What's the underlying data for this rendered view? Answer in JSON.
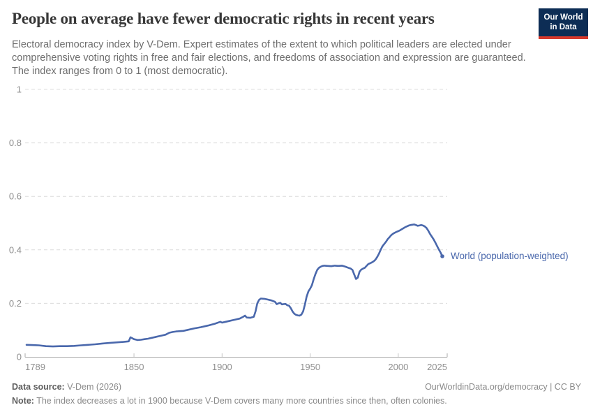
{
  "header": {
    "logo": {
      "line1": "Our World",
      "line2": "in Data",
      "bg_color": "#0d2d55",
      "stripe_color": "#d7392c"
    }
  },
  "chart_data": {
    "type": "line",
    "title": "People on average have fewer democratic rights in recent years",
    "subtitle": "Electoral democracy index by V-Dem. Expert estimates of the extent to which political leaders are elected under comprehensive voting rights in free and fair elections, and freedoms of association and expression are guaranteed. The index ranges from 0 to 1 (most democratic).",
    "xlabel": "",
    "ylabel": "",
    "xlim": [
      1789,
      2025
    ],
    "ylim": [
      0,
      1
    ],
    "xticks": [
      1789,
      1850,
      1900,
      1950,
      2000,
      2025
    ],
    "yticks": [
      0,
      0.2,
      0.4,
      0.6,
      0.8,
      1
    ],
    "grid": "horizontal-dashed",
    "legend_position": "label-at-line-end",
    "series": [
      {
        "name": "World (population-weighted)",
        "color": "#4a68ac",
        "points": [
          [
            1789,
            0.045
          ],
          [
            1792,
            0.044
          ],
          [
            1796,
            0.043
          ],
          [
            1800,
            0.04
          ],
          [
            1804,
            0.039
          ],
          [
            1808,
            0.04
          ],
          [
            1812,
            0.04
          ],
          [
            1816,
            0.041
          ],
          [
            1820,
            0.043
          ],
          [
            1824,
            0.045
          ],
          [
            1828,
            0.047
          ],
          [
            1832,
            0.05
          ],
          [
            1836,
            0.052
          ],
          [
            1840,
            0.054
          ],
          [
            1844,
            0.056
          ],
          [
            1847,
            0.058
          ],
          [
            1848,
            0.073
          ],
          [
            1849,
            0.07
          ],
          [
            1850,
            0.066
          ],
          [
            1852,
            0.063
          ],
          [
            1854,
            0.064
          ],
          [
            1856,
            0.066
          ],
          [
            1858,
            0.068
          ],
          [
            1860,
            0.071
          ],
          [
            1862,
            0.074
          ],
          [
            1864,
            0.077
          ],
          [
            1866,
            0.08
          ],
          [
            1868,
            0.083
          ],
          [
            1870,
            0.09
          ],
          [
            1872,
            0.093
          ],
          [
            1874,
            0.095
          ],
          [
            1876,
            0.096
          ],
          [
            1878,
            0.097
          ],
          [
            1880,
            0.1
          ],
          [
            1884,
            0.106
          ],
          [
            1888,
            0.111
          ],
          [
            1892,
            0.117
          ],
          [
            1896,
            0.124
          ],
          [
            1899,
            0.131
          ],
          [
            1900,
            0.128
          ],
          [
            1902,
            0.131
          ],
          [
            1904,
            0.134
          ],
          [
            1906,
            0.137
          ],
          [
            1908,
            0.14
          ],
          [
            1910,
            0.143
          ],
          [
            1912,
            0.15
          ],
          [
            1913,
            0.154
          ],
          [
            1914,
            0.147
          ],
          [
            1916,
            0.146
          ],
          [
            1918,
            0.15
          ],
          [
            1919,
            0.17
          ],
          [
            1920,
            0.2
          ],
          [
            1921,
            0.213
          ],
          [
            1922,
            0.218
          ],
          [
            1924,
            0.217
          ],
          [
            1926,
            0.214
          ],
          [
            1928,
            0.211
          ],
          [
            1930,
            0.206
          ],
          [
            1931,
            0.197
          ],
          [
            1932,
            0.2
          ],
          [
            1933,
            0.202
          ],
          [
            1934,
            0.196
          ],
          [
            1935,
            0.197
          ],
          [
            1936,
            0.198
          ],
          [
            1937,
            0.193
          ],
          [
            1938,
            0.191
          ],
          [
            1939,
            0.182
          ],
          [
            1940,
            0.17
          ],
          [
            1941,
            0.161
          ],
          [
            1942,
            0.157
          ],
          [
            1943,
            0.155
          ],
          [
            1944,
            0.154
          ],
          [
            1945,
            0.158
          ],
          [
            1946,
            0.17
          ],
          [
            1947,
            0.195
          ],
          [
            1948,
            0.225
          ],
          [
            1949,
            0.245
          ],
          [
            1950,
            0.255
          ],
          [
            1951,
            0.268
          ],
          [
            1952,
            0.29
          ],
          [
            1953,
            0.31
          ],
          [
            1954,
            0.325
          ],
          [
            1955,
            0.333
          ],
          [
            1956,
            0.337
          ],
          [
            1957,
            0.34
          ],
          [
            1958,
            0.341
          ],
          [
            1960,
            0.34
          ],
          [
            1962,
            0.339
          ],
          [
            1964,
            0.341
          ],
          [
            1966,
            0.34
          ],
          [
            1968,
            0.341
          ],
          [
            1970,
            0.337
          ],
          [
            1972,
            0.332
          ],
          [
            1973,
            0.33
          ],
          [
            1974,
            0.325
          ],
          [
            1975,
            0.308
          ],
          [
            1976,
            0.291
          ],
          [
            1977,
            0.296
          ],
          [
            1978,
            0.318
          ],
          [
            1979,
            0.326
          ],
          [
            1980,
            0.33
          ],
          [
            1981,
            0.333
          ],
          [
            1982,
            0.34
          ],
          [
            1983,
            0.347
          ],
          [
            1984,
            0.35
          ],
          [
            1985,
            0.353
          ],
          [
            1986,
            0.357
          ],
          [
            1987,
            0.363
          ],
          [
            1988,
            0.373
          ],
          [
            1989,
            0.385
          ],
          [
            1990,
            0.4
          ],
          [
            1991,
            0.413
          ],
          [
            1992,
            0.422
          ],
          [
            1993,
            0.43
          ],
          [
            1994,
            0.44
          ],
          [
            1995,
            0.447
          ],
          [
            1996,
            0.455
          ],
          [
            1997,
            0.46
          ],
          [
            1998,
            0.464
          ],
          [
            1999,
            0.467
          ],
          [
            2000,
            0.47
          ],
          [
            2001,
            0.473
          ],
          [
            2002,
            0.477
          ],
          [
            2003,
            0.481
          ],
          [
            2004,
            0.485
          ],
          [
            2005,
            0.488
          ],
          [
            2006,
            0.491
          ],
          [
            2007,
            0.493
          ],
          [
            2008,
            0.494
          ],
          [
            2009,
            0.495
          ],
          [
            2010,
            0.493
          ],
          [
            2011,
            0.49
          ],
          [
            2012,
            0.491
          ],
          [
            2013,
            0.493
          ],
          [
            2014,
            0.491
          ],
          [
            2015,
            0.488
          ],
          [
            2016,
            0.482
          ],
          [
            2017,
            0.472
          ],
          [
            2018,
            0.46
          ],
          [
            2019,
            0.45
          ],
          [
            2020,
            0.44
          ],
          [
            2021,
            0.428
          ],
          [
            2022,
            0.415
          ],
          [
            2023,
            0.402
          ],
          [
            2024,
            0.39
          ],
          [
            2025,
            0.376
          ]
        ]
      }
    ]
  },
  "footer": {
    "datasource_label": "Data source:",
    "datasource_value": " V-Dem (2026)",
    "url": "OurWorldinData.org/democracy | CC BY",
    "note_label": "Note:",
    "note_value": " The index decreases a lot in 1900 because V-Dem covers many more countries since then, often colonies."
  }
}
